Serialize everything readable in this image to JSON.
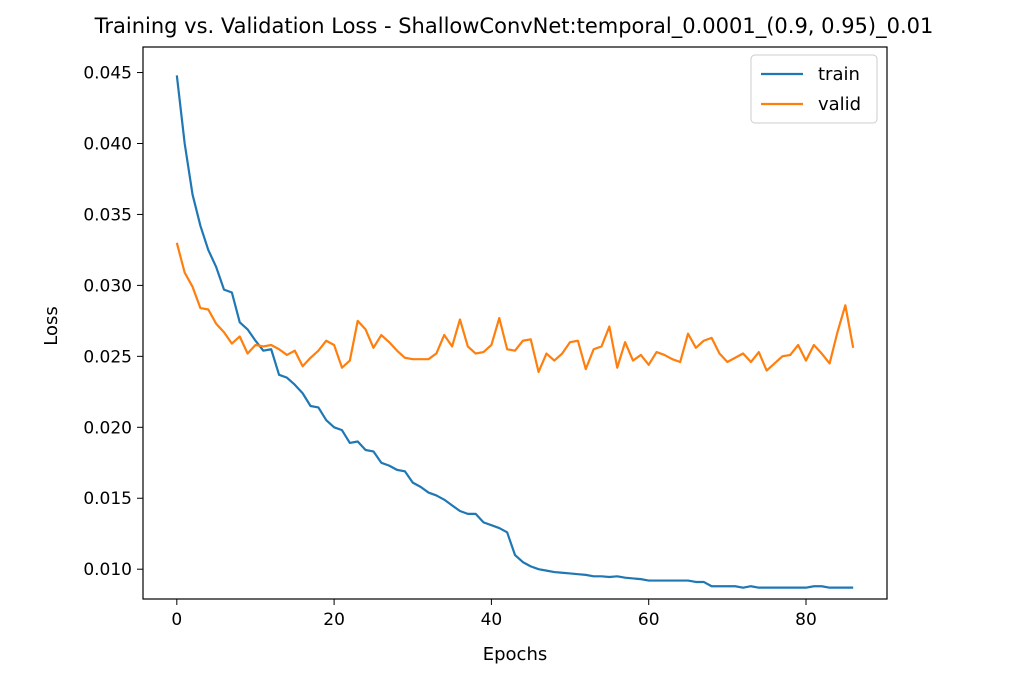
{
  "chart_data": {
    "type": "line",
    "title": "Training vs. Validation Loss - ShallowConvNet:temporal_0.0001_(0.9, 0.95)_0.01",
    "xlabel": "Epochs",
    "ylabel": "Loss",
    "xlim": [
      -4.3,
      90.3
    ],
    "ylim": [
      0.0079,
      0.0468
    ],
    "xticks": [
      0,
      20,
      40,
      60,
      80
    ],
    "yticks": [
      0.01,
      0.015,
      0.02,
      0.025,
      0.03,
      0.035,
      0.04,
      0.045
    ],
    "xtick_labels": [
      "0",
      "20",
      "40",
      "60",
      "80"
    ],
    "ytick_labels": [
      "0.010",
      "0.015",
      "0.020",
      "0.025",
      "0.030",
      "0.035",
      "0.040",
      "0.045"
    ],
    "grid": false,
    "legend_position": "top-right",
    "x": [
      0,
      1,
      2,
      3,
      4,
      5,
      6,
      7,
      8,
      9,
      10,
      11,
      12,
      13,
      14,
      15,
      16,
      17,
      18,
      19,
      20,
      21,
      22,
      23,
      24,
      25,
      26,
      27,
      28,
      29,
      30,
      31,
      32,
      33,
      34,
      35,
      36,
      37,
      38,
      39,
      40,
      41,
      42,
      43,
      44,
      45,
      46,
      47,
      48,
      49,
      50,
      51,
      52,
      53,
      54,
      55,
      56,
      57,
      58,
      59,
      60,
      61,
      62,
      63,
      64,
      65,
      66,
      67,
      68,
      69,
      70,
      71,
      72,
      73,
      74,
      75,
      76,
      77,
      78,
      79,
      80,
      81,
      82,
      83,
      84,
      85,
      86
    ],
    "series": [
      {
        "name": "train",
        "color": "#1f77b4",
        "values": [
          0.0448,
          0.04,
          0.0364,
          0.0342,
          0.0325,
          0.0313,
          0.0297,
          0.0295,
          0.0274,
          0.0269,
          0.0261,
          0.0254,
          0.0255,
          0.0237,
          0.0235,
          0.023,
          0.0224,
          0.0215,
          0.0214,
          0.0205,
          0.02,
          0.0198,
          0.0189,
          0.019,
          0.0184,
          0.0183,
          0.0175,
          0.0173,
          0.017,
          0.0169,
          0.0161,
          0.0158,
          0.0154,
          0.0152,
          0.0149,
          0.0145,
          0.0141,
          0.0139,
          0.0139,
          0.0133,
          0.0131,
          0.0129,
          0.0126,
          0.011,
          0.0105,
          0.0102,
          0.01,
          0.0099,
          0.0098,
          0.00975,
          0.0097,
          0.00965,
          0.0096,
          0.0095,
          0.0095,
          0.00945,
          0.0095,
          0.0094,
          0.00935,
          0.0093,
          0.0092,
          0.0092,
          0.0092,
          0.0092,
          0.0092,
          0.0092,
          0.0091,
          0.0091,
          0.0088,
          0.0088,
          0.0088,
          0.0088,
          0.0087,
          0.0088,
          0.0087,
          0.0087,
          0.0087,
          0.0087,
          0.0087,
          0.0087,
          0.0087,
          0.0088,
          0.0088,
          0.0087,
          0.0087,
          0.0087,
          0.0087
        ]
      },
      {
        "name": "valid",
        "color": "#ff7f0e",
        "values": [
          0.033,
          0.0309,
          0.0299,
          0.0284,
          0.0283,
          0.0273,
          0.0267,
          0.0259,
          0.0264,
          0.0252,
          0.0258,
          0.0257,
          0.0258,
          0.0255,
          0.0251,
          0.0254,
          0.0243,
          0.0249,
          0.0254,
          0.0261,
          0.0258,
          0.0242,
          0.0247,
          0.0275,
          0.0269,
          0.0256,
          0.0265,
          0.026,
          0.0254,
          0.0249,
          0.0248,
          0.0248,
          0.0248,
          0.0252,
          0.0265,
          0.0257,
          0.0276,
          0.0257,
          0.0252,
          0.0253,
          0.0258,
          0.0277,
          0.0255,
          0.0254,
          0.0261,
          0.0262,
          0.0239,
          0.0252,
          0.0247,
          0.0252,
          0.026,
          0.0261,
          0.0241,
          0.0255,
          0.0257,
          0.0271,
          0.0242,
          0.026,
          0.0247,
          0.0251,
          0.0244,
          0.0253,
          0.0251,
          0.0248,
          0.0246,
          0.0266,
          0.0256,
          0.0261,
          0.0263,
          0.0252,
          0.0246,
          0.0249,
          0.0252,
          0.0246,
          0.0253,
          0.024,
          0.0245,
          0.025,
          0.0251,
          0.0258,
          0.0247,
          0.0258,
          0.0252,
          0.0245,
          0.0267,
          0.0286,
          0.0256
        ]
      }
    ]
  }
}
